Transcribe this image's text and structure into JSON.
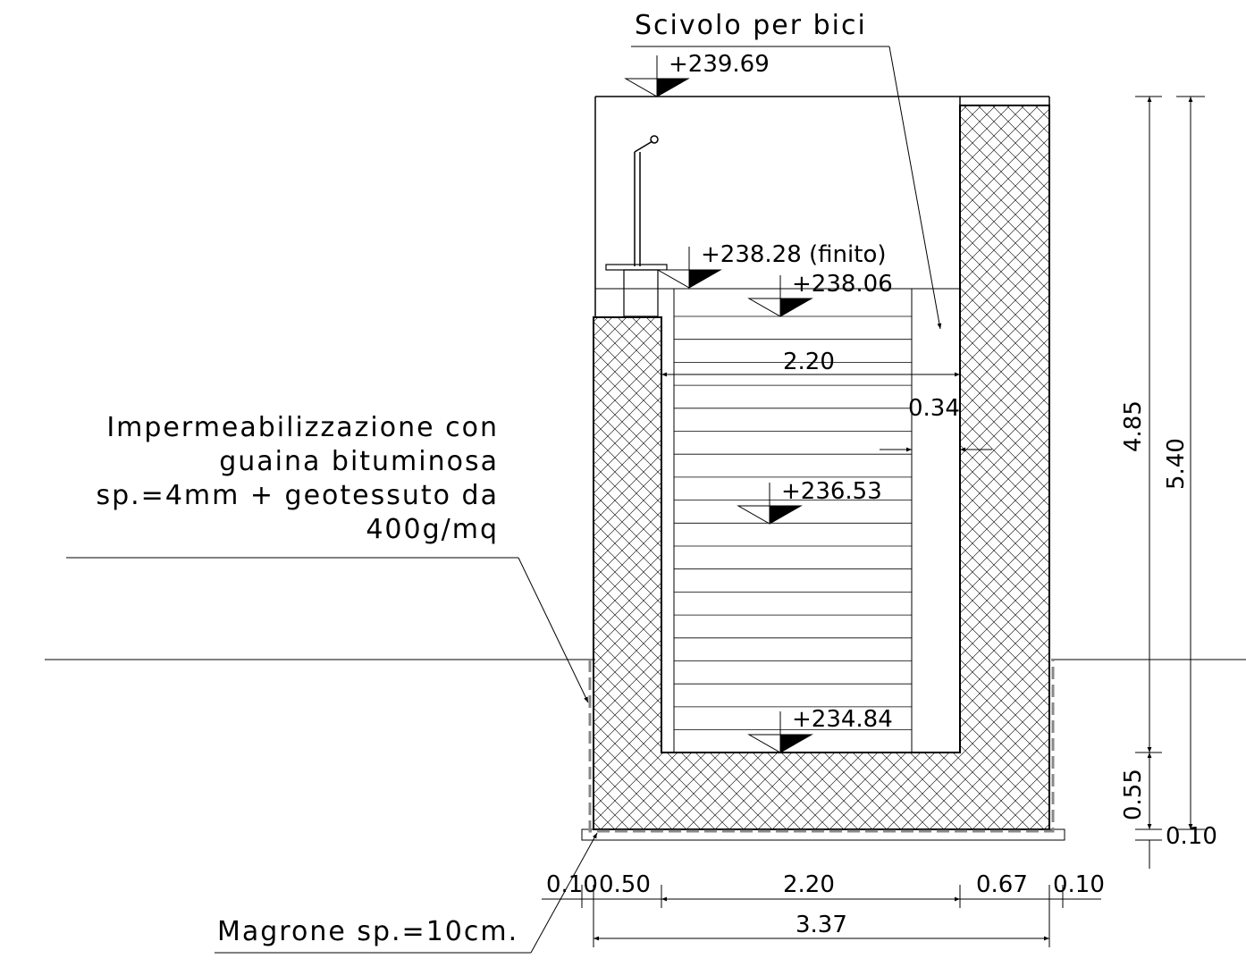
{
  "labels": {
    "ramp": "Scivolo per bici",
    "waterproofing": [
      "Impermeabilizzazione con",
      "guaina bituminosa",
      "sp.=4mm + geotessuto da",
      "400g/mq"
    ],
    "lean_concrete": "Magrone sp.=10cm."
  },
  "levels": {
    "top": "+239.69",
    "finished": "+238.28 (finito)",
    "stair_top": "+238.06",
    "mid": "+236.53",
    "bottom": "+234.84"
  },
  "dimensions": {
    "inner_width": "2.20",
    "gap": "0.34",
    "height_inner": "4.85",
    "height_total": "5.40",
    "base_slab": "0.55",
    "magrone_v": "0.10",
    "bottom_row": [
      "0.10",
      "0.50",
      "2.20",
      "0.67",
      "0.10"
    ],
    "total_width": "3.37"
  },
  "colors": {
    "line": "#000000",
    "membrane": "#888888"
  }
}
